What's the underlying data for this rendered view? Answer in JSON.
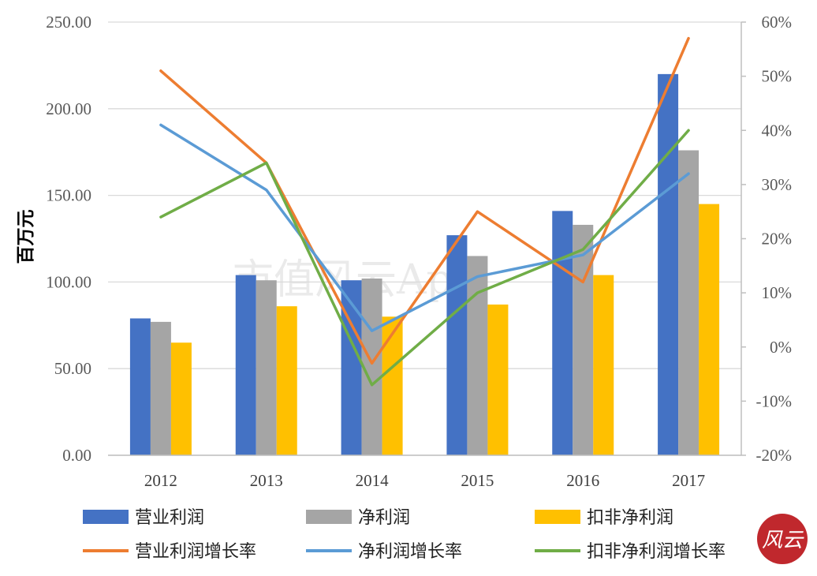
{
  "watermark": "市值风云App",
  "seal_text": "风云",
  "chart_data": {
    "type": "bar",
    "categories": [
      "2012",
      "2013",
      "2014",
      "2015",
      "2016",
      "2017"
    ],
    "ylabel": "百万元",
    "ylim": [
      0,
      250
    ],
    "yticks": [
      "0.00",
      "50.00",
      "100.00",
      "150.00",
      "200.00",
      "250.00"
    ],
    "y2lim": [
      -20,
      60
    ],
    "y2ticks": [
      "-20%",
      "-10%",
      "0%",
      "10%",
      "20%",
      "30%",
      "40%",
      "50%",
      "60%"
    ],
    "grid": true,
    "legend_position": "bottom",
    "bar_series": [
      {
        "name": "营业利润",
        "color": "#4472C4",
        "values": [
          79,
          104,
          101,
          127,
          141,
          220
        ]
      },
      {
        "name": "净利润",
        "color": "#A5A5A5",
        "values": [
          77,
          101,
          102,
          115,
          133,
          176
        ]
      },
      {
        "name": "扣非净利润",
        "color": "#FFC000",
        "values": [
          65,
          86,
          80,
          87,
          104,
          145
        ]
      }
    ],
    "line_series": [
      {
        "name": "营业利润增长率",
        "color": "#ED7D31",
        "axis": "right",
        "values": [
          51,
          34,
          -3,
          25,
          12,
          57
        ]
      },
      {
        "name": "净利润增长率",
        "color": "#5B9BD5",
        "axis": "right",
        "values": [
          41,
          29,
          3,
          13,
          17,
          32
        ]
      },
      {
        "name": "扣非净利润增长率",
        "color": "#70AD47",
        "axis": "right",
        "values": [
          24,
          34,
          -7,
          10,
          18,
          40
        ]
      }
    ]
  }
}
